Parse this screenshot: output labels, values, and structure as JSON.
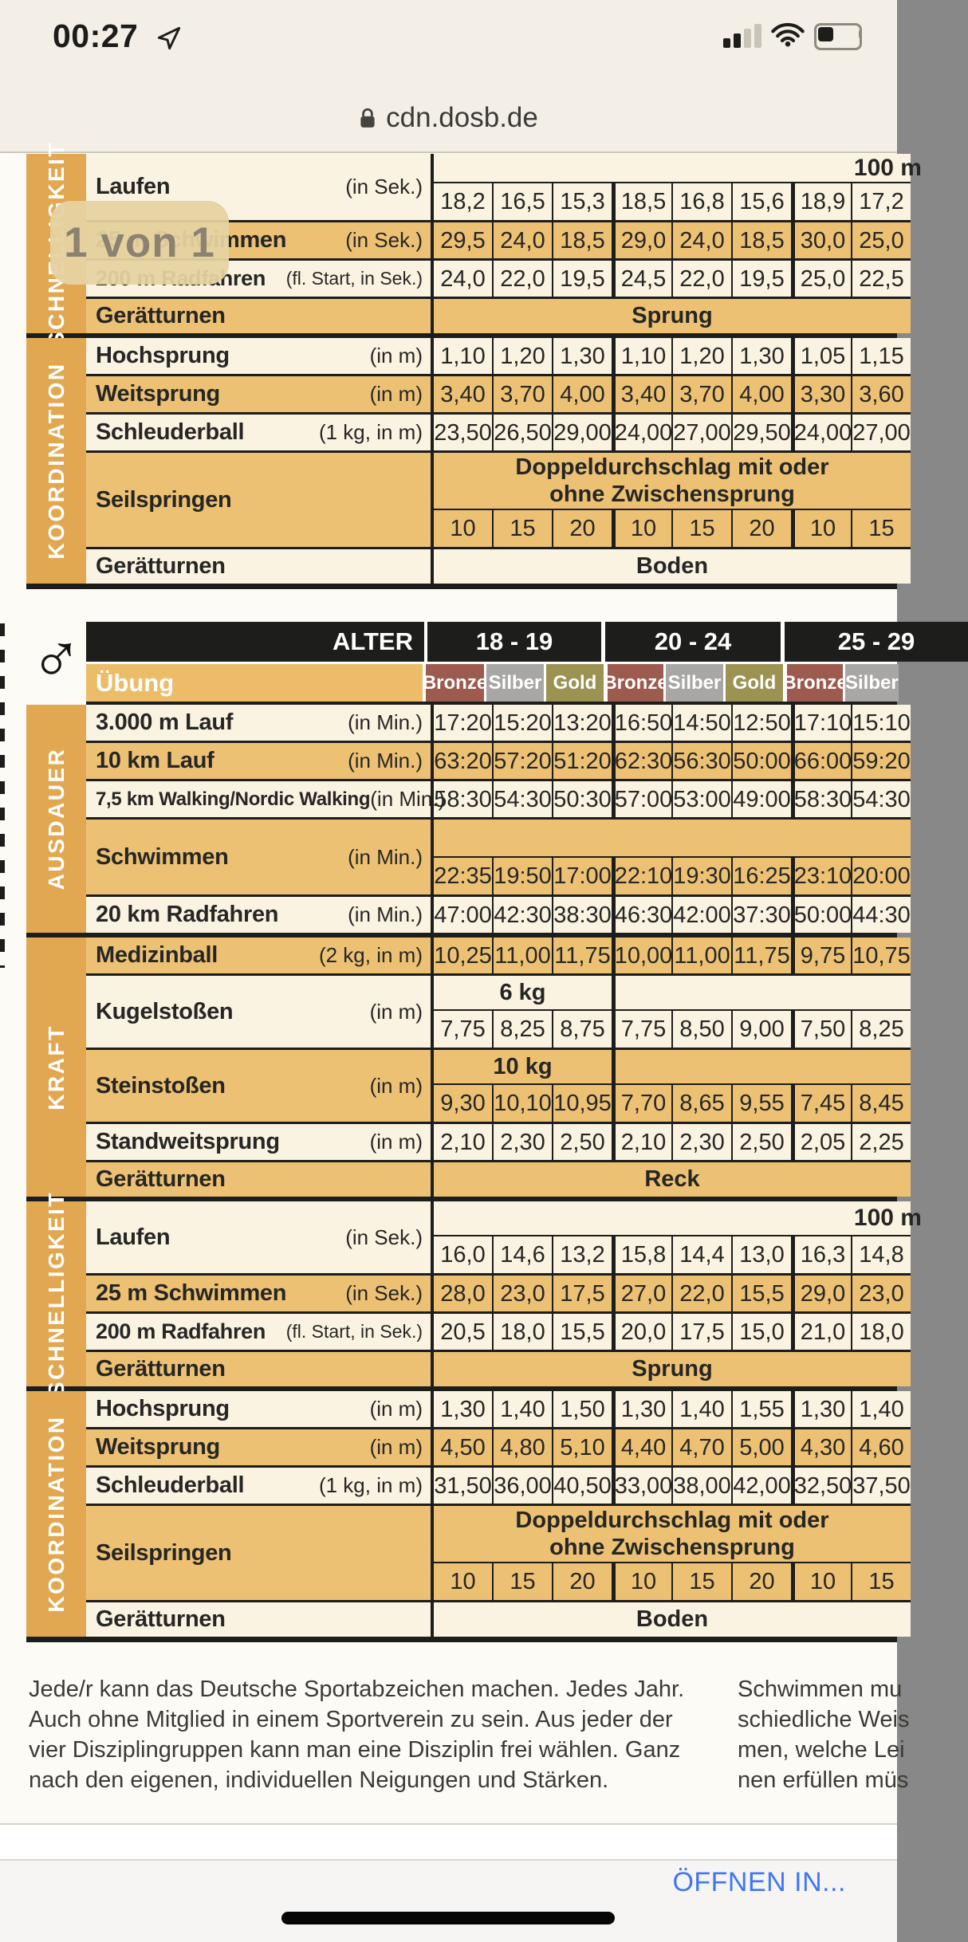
{
  "status_bar": {
    "time": "00:27",
    "url": "cdn.dosb.de"
  },
  "page_badge": "1 von 1",
  "icons": {
    "location": "location-arrow-icon",
    "signal": "cellular-signal-icon",
    "wifi": "wifi-icon",
    "battery": "battery-icon",
    "lock": "lock-icon"
  },
  "colors": {
    "ink": "#1d1d1b",
    "cream": "#fbf3e2",
    "orange": "#ecc174",
    "band": "#e2a851",
    "uebung": "#ecbc68",
    "bronze": "#9d5a4e",
    "silver": "#a8a7a5",
    "gold": "#9c9353",
    "blue": "#4077f0",
    "statusbg": "#f3efe7",
    "pagebg": "#fdfbf5"
  },
  "table1": {
    "sections": [
      {
        "band": "SCHNELLIGKEIT",
        "rows": [
          {
            "kind": "block",
            "bg": "cream",
            "label": "Laufen",
            "unit": "(in Sek.)",
            "span": {
              "mode": "right-cut",
              "text": "100 m"
            },
            "topH": 37,
            "values": [
              "18,2",
              "16,5",
              "15,3",
              "18,5",
              "16,8",
              "15,6",
              "18,9",
              "17,2"
            ]
          },
          {
            "kind": "simple",
            "bg": "orange",
            "label": "25 m Schwimmen",
            "unit": "(in Sek.)",
            "values": [
              "29,5",
              "24,0",
              "18,5",
              "29,0",
              "24,0",
              "18,5",
              "30,0",
              "25,0"
            ]
          },
          {
            "kind": "simple",
            "bg": "cream",
            "tight": true,
            "label": "200 m Radfahren",
            "unit": "(fl. Start, in Sek.)",
            "values": [
              "24,0",
              "22,0",
              "19,5",
              "24,5",
              "22,0",
              "19,5",
              "25,0",
              "22,5"
            ]
          },
          {
            "kind": "span",
            "bg": "orange",
            "label": "Gerätturnen",
            "unit": "",
            "span_text": "Sprung"
          }
        ]
      },
      {
        "band": "KOORDINATION",
        "rows": [
          {
            "kind": "simple",
            "bg": "cream",
            "label": "Hochsprung",
            "unit": "(in m)",
            "values": [
              "1,10",
              "1,20",
              "1,30",
              "1,10",
              "1,20",
              "1,30",
              "1,05",
              "1,15"
            ]
          },
          {
            "kind": "simple",
            "bg": "orange",
            "label": "Weitsprung",
            "unit": "(in m)",
            "values": [
              "3,40",
              "3,70",
              "4,00",
              "3,40",
              "3,70",
              "4,00",
              "3,30",
              "3,60"
            ]
          },
          {
            "kind": "simple",
            "bg": "cream",
            "label": "Schleuderball",
            "unit": "(1 kg, in m)",
            "values": [
              "23,50",
              "26,50",
              "29,00",
              "24,00",
              "27,00",
              "29,50",
              "24,00",
              "27,00"
            ]
          },
          {
            "kind": "rope",
            "bg": "orange",
            "label": "Seilspringen",
            "unit": "",
            "lines": [
              "Doppeldurchschlag mit oder",
              "ohne Zwischensprung"
            ],
            "values": [
              "10",
              "15",
              "20",
              "10",
              "15",
              "20",
              "10",
              "15"
            ]
          },
          {
            "kind": "span",
            "bg": "cream",
            "label": "Gerätturnen",
            "unit": "",
            "span_text": "Boden"
          }
        ]
      }
    ]
  },
  "table2": {
    "gender_symbol": "♂",
    "header": {
      "alter_label": "ALTER",
      "age_groups": [
        "18 - 19",
        "20 - 24",
        "25 - 29"
      ],
      "uebung_label": "Übung",
      "medals": [
        "Bronze",
        "Silber",
        "Gold"
      ]
    },
    "sections": [
      {
        "band": "AUSDAUER",
        "rows": [
          {
            "kind": "simple",
            "bg": "cream",
            "label": "3.000 m Lauf",
            "unit": "(in Min.)",
            "values": [
              "17:20",
              "15:20",
              "13:20",
              "16:50",
              "14:50",
              "12:50",
              "17:10",
              "15:10"
            ]
          },
          {
            "kind": "simple",
            "bg": "orange",
            "label": "10 km Lauf",
            "unit": "(in Min.)",
            "values": [
              "63:20",
              "57:20",
              "51:20",
              "62:30",
              "56:30",
              "50:00",
              "66:00",
              "59:20"
            ]
          },
          {
            "kind": "simple",
            "bg": "cream",
            "small": true,
            "label": "7,5 km Walking/Nordic Walking",
            "unit": "(in Min.)",
            "values": [
              "58:30",
              "54:30",
              "50:30",
              "57:00",
              "53:00",
              "49:00",
              "58:30",
              "54:30"
            ]
          },
          {
            "kind": "block",
            "bg": "orange",
            "label": "Schwimmen",
            "unit": "(in Min.)",
            "span": {
              "mode": "empty",
              "text": ""
            },
            "topH": 48,
            "values": [
              "22:35",
              "19:50",
              "17:00",
              "22:10",
              "19:30",
              "16:25",
              "23:10",
              "20:00"
            ]
          },
          {
            "kind": "simple",
            "bg": "cream",
            "label": "20 km Radfahren",
            "unit": "(in Min.)",
            "values": [
              "47:00",
              "42:30",
              "38:30",
              "46:30",
              "42:00",
              "37:30",
              "50:00",
              "44:30"
            ]
          }
        ]
      },
      {
        "band": "KRAFT",
        "rows": [
          {
            "kind": "simple",
            "bg": "orange",
            "label": "Medizinball",
            "unit": "(2 kg, in m)",
            "values": [
              "10,25",
              "11,00",
              "11,75",
              "10,00",
              "11,00",
              "11,75",
              "9,75",
              "10,75"
            ]
          },
          {
            "kind": "block",
            "bg": "cream",
            "label": "Kugelstoßen",
            "unit": "(in m)",
            "span": {
              "mode": "first3",
              "text": "6 kg"
            },
            "topH": 44,
            "values": [
              "7,75",
              "8,25",
              "8,75",
              "7,75",
              "8,50",
              "9,00",
              "7,50",
              "8,25"
            ]
          },
          {
            "kind": "block",
            "bg": "orange",
            "label": "Steinstoßen",
            "unit": "(in m)",
            "span": {
              "mode": "first3",
              "text": "10 kg"
            },
            "topH": 44,
            "values": [
              "9,30",
              "10,10",
              "10,95",
              "7,70",
              "8,65",
              "9,55",
              "7,45",
              "8,45"
            ]
          },
          {
            "kind": "simple",
            "bg": "cream",
            "label": "Standweitsprung",
            "unit": "(in m)",
            "values": [
              "2,10",
              "2,30",
              "2,50",
              "2,10",
              "2,30",
              "2,50",
              "2,05",
              "2,25"
            ]
          },
          {
            "kind": "span",
            "bg": "orange",
            "label": "Gerätturnen",
            "unit": "",
            "span_text": "Reck"
          }
        ]
      },
      {
        "band": "SCHNELLIGKEIT",
        "rows": [
          {
            "kind": "block",
            "bg": "cream",
            "label": "Laufen",
            "unit": "(in Sek.)",
            "span": {
              "mode": "right-cut",
              "text": "100 m"
            },
            "topH": 44,
            "values": [
              "16,0",
              "14,6",
              "13,2",
              "15,8",
              "14,4",
              "13,0",
              "16,3",
              "14,8"
            ]
          },
          {
            "kind": "simple",
            "bg": "orange",
            "label": "25 m Schwimmen",
            "unit": "(in Sek.)",
            "values": [
              "28,0",
              "23,0",
              "17,5",
              "27,0",
              "22,0",
              "15,5",
              "29,0",
              "23,0"
            ]
          },
          {
            "kind": "simple",
            "bg": "cream",
            "tight": true,
            "label": "200 m Radfahren",
            "unit": "(fl. Start, in Sek.)",
            "values": [
              "20,5",
              "18,0",
              "15,5",
              "20,0",
              "17,5",
              "15,0",
              "21,0",
              "18,0"
            ]
          },
          {
            "kind": "span",
            "bg": "orange",
            "label": "Gerätturnen",
            "unit": "",
            "span_text": "Sprung"
          }
        ]
      },
      {
        "band": "KOORDINATION",
        "rows": [
          {
            "kind": "simple",
            "bg": "cream",
            "label": "Hochsprung",
            "unit": "(in m)",
            "values": [
              "1,30",
              "1,40",
              "1,50",
              "1,30",
              "1,40",
              "1,55",
              "1,30",
              "1,40"
            ]
          },
          {
            "kind": "simple",
            "bg": "orange",
            "label": "Weitsprung",
            "unit": "(in m)",
            "values": [
              "4,50",
              "4,80",
              "5,10",
              "4,40",
              "4,70",
              "5,00",
              "4,30",
              "4,60"
            ]
          },
          {
            "kind": "simple",
            "bg": "cream",
            "label": "Schleuderball",
            "unit": "(1 kg, in m)",
            "values": [
              "31,50",
              "36,00",
              "40,50",
              "33,00",
              "38,00",
              "42,00",
              "32,50",
              "37,50"
            ]
          },
          {
            "kind": "rope",
            "bg": "orange",
            "label": "Seilspringen",
            "unit": "",
            "lines": [
              "Doppeldurchschlag mit oder",
              "ohne Zwischensprung"
            ],
            "values": [
              "10",
              "15",
              "20",
              "10",
              "15",
              "20",
              "10",
              "15"
            ]
          },
          {
            "kind": "span",
            "bg": "cream",
            "label": "Gerätturnen",
            "unit": "",
            "span_text": "Boden"
          }
        ]
      }
    ]
  },
  "footer": {
    "left_text": "Jede/r kann das Deutsche Sportabzeichen machen. Jedes Jahr.\nAuch ohne Mitglied in einem Sportverein zu sein. Aus jeder der\nvier Disziplingruppen kann man eine Disziplin frei wählen. Ganz\nnach den eigenen, individuellen Neigungen und Stärken.",
    "right_text": "Schwimmen mu\nschiedliche Weis\nmen, welche Lei\nnen erfüllen müs"
  },
  "toolbar": {
    "open_in": "ÖFFNEN IN..."
  }
}
